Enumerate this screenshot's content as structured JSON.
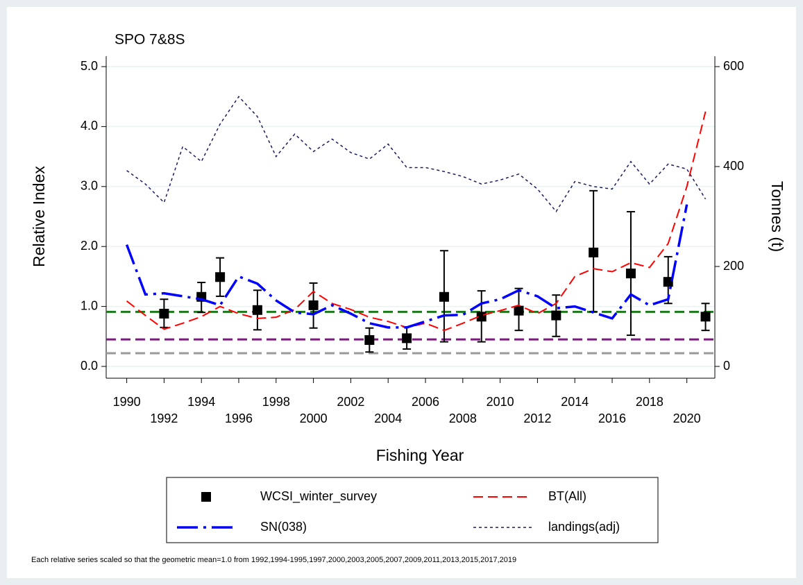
{
  "chart_data": {
    "type": "line",
    "title": "SPO 7&8S",
    "x_label": "Fishing Year",
    "y_label": "Relative Index",
    "y2_label": "Tonnes (t)",
    "footnote": "Each relative series scaled so that the geometric mean=1.0 from 1992,1994-1995,1997,2000,2003,2005,2007,2009,2011,2013,2015,2017,2019",
    "xlim": [
      1988.9,
      2021.5
    ],
    "xticks": [
      1990,
      1992,
      1994,
      1996,
      1998,
      2000,
      2002,
      2004,
      2006,
      2008,
      2010,
      2012,
      2014,
      2016,
      2018,
      2020
    ],
    "ylim": [
      0,
      5
    ],
    "yticks": [
      {
        "value": 0,
        "label": "0.0"
      },
      {
        "value": 1,
        "label": "1.0"
      },
      {
        "value": 2,
        "label": "2.0"
      },
      {
        "value": 3,
        "label": "3.0"
      },
      {
        "value": 4,
        "label": "4.0"
      },
      {
        "value": 5,
        "label": "5.0"
      }
    ],
    "y2lim": [
      0,
      600
    ],
    "y2ticks": [
      0,
      200,
      400,
      600
    ],
    "grid": true,
    "reference_lines": [
      {
        "value": 0.91,
        "color": "#1a7a1a"
      },
      {
        "value": 0.45,
        "color": "#7a1a7a"
      },
      {
        "value": 0.22,
        "color": "#999999"
      }
    ],
    "series": [
      {
        "name": "WCSI_winter_survey",
        "style": "marker",
        "color": "#000000",
        "x": [
          1992,
          1994,
          1995,
          1997,
          2000,
          2003,
          2005,
          2007,
          2009,
          2011,
          2013,
          2015,
          2017,
          2019,
          2021
        ],
        "values": [
          0.88,
          1.16,
          1.49,
          0.94,
          1.02,
          0.44,
          0.47,
          1.16,
          0.83,
          0.93,
          0.85,
          1.9,
          1.55,
          1.41,
          0.83
        ],
        "lower": [
          0.65,
          0.9,
          1.17,
          0.61,
          0.64,
          0.24,
          0.29,
          0.41,
          0.41,
          0.6,
          0.5,
          0.91,
          0.52,
          1.05,
          0.6
        ],
        "upper": [
          1.12,
          1.4,
          1.81,
          1.27,
          1.39,
          0.64,
          0.66,
          1.93,
          1.26,
          1.3,
          1.19,
          2.93,
          2.58,
          1.83,
          1.05
        ]
      },
      {
        "name": "BT(All)",
        "style": "dash",
        "color": "#ff0000",
        "x": [
          1990,
          1991,
          1992,
          1993,
          1994,
          1995,
          1996,
          1997,
          1998,
          1999,
          2000,
          2001,
          2002,
          2003,
          2004,
          2005,
          2006,
          2007,
          2008,
          2009,
          2010,
          2011,
          2012,
          2013,
          2014,
          2015,
          2016,
          2017,
          2018,
          2019,
          2020,
          2021
        ],
        "values": [
          1.09,
          0.85,
          0.62,
          0.72,
          0.83,
          1.0,
          0.88,
          0.8,
          0.82,
          0.95,
          1.25,
          1.05,
          0.95,
          0.82,
          0.75,
          0.65,
          0.72,
          0.6,
          0.72,
          0.85,
          0.93,
          1.02,
          0.88,
          1.05,
          1.5,
          1.63,
          1.58,
          1.73,
          1.65,
          2.05,
          3.0,
          4.25
        ]
      },
      {
        "name": "SN(038)",
        "style": "longdash_dot",
        "color": "#0000ff",
        "x": [
          1990,
          1991,
          1992,
          1993,
          1994,
          1995,
          1996,
          1997,
          1998,
          1999,
          2000,
          2001,
          2002,
          2003,
          2004,
          2005,
          2006,
          2007,
          2008,
          2009,
          2010,
          2011,
          2012,
          2013,
          2014,
          2015,
          2016,
          2017,
          2018,
          2019,
          2020,
          2021
        ],
        "values": [
          2.03,
          1.2,
          1.22,
          1.17,
          1.12,
          1.02,
          1.5,
          1.38,
          1.1,
          0.9,
          0.87,
          1.02,
          0.88,
          0.72,
          0.65,
          0.65,
          0.75,
          0.85,
          0.86,
          1.05,
          1.12,
          1.27,
          1.17,
          0.97,
          1.0,
          0.9,
          0.8,
          1.2,
          1.02,
          1.12,
          2.7,
          null
        ]
      },
      {
        "name": "landings(adj)",
        "style": "shortdash",
        "color": "#1a1a5e",
        "axis": "y2",
        "x": [
          1990,
          1991,
          1992,
          1993,
          1994,
          1995,
          1996,
          1997,
          1998,
          1999,
          2000,
          2001,
          2002,
          2003,
          2004,
          2005,
          2006,
          2007,
          2008,
          2009,
          2010,
          2011,
          2012,
          2013,
          2014,
          2015,
          2016,
          2017,
          2018,
          2019,
          2020,
          2021
        ],
        "values": [
          392,
          365,
          328,
          440,
          410,
          485,
          540,
          500,
          420,
          465,
          430,
          455,
          428,
          415,
          445,
          398,
          398,
          390,
          380,
          365,
          373,
          385,
          355,
          310,
          370,
          360,
          355,
          410,
          365,
          405,
          395,
          335
        ]
      }
    ]
  }
}
